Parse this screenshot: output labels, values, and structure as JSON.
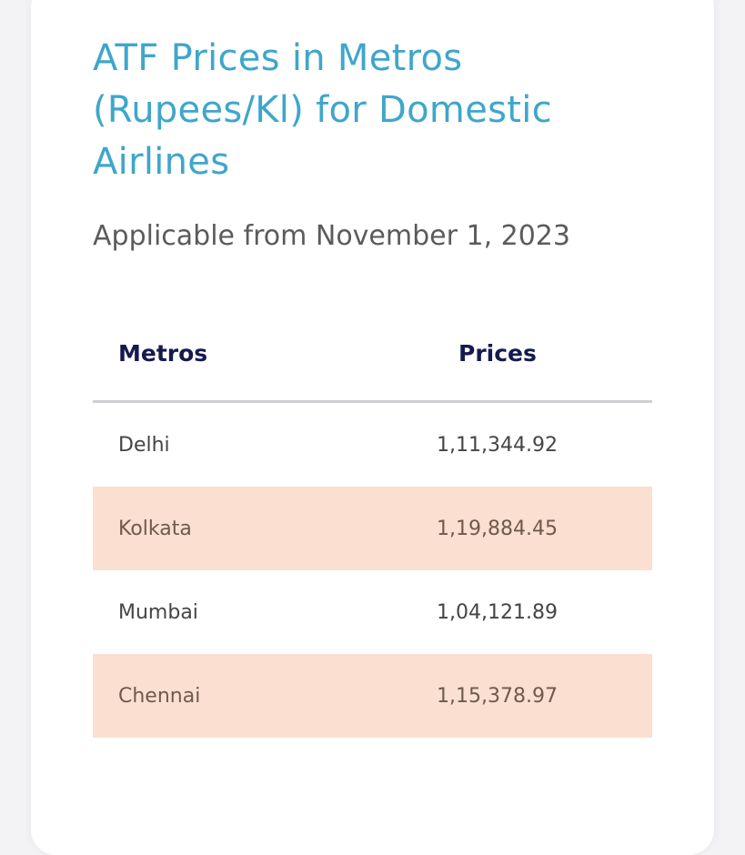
{
  "card": {
    "title": "ATF Prices in Metros (Rupees/Kl) for Domestic Airlines",
    "subtitle": "Applicable from November 1, 2023"
  },
  "table": {
    "headers": [
      "Metros",
      "Prices"
    ],
    "rows": [
      {
        "metro": "Delhi",
        "price": "1,11,344.92",
        "shaded": false
      },
      {
        "metro": "Kolkata",
        "price": "1,19,884.45",
        "shaded": true
      },
      {
        "metro": "Mumbai",
        "price": "1,04,121.89",
        "shaded": false
      },
      {
        "metro": "Chennai",
        "price": "1,15,378.97",
        "shaded": true
      }
    ]
  },
  "colors": {
    "title": "#3fa6cb",
    "header_text": "#151a4e",
    "row_highlight": "#fbdfd0"
  }
}
